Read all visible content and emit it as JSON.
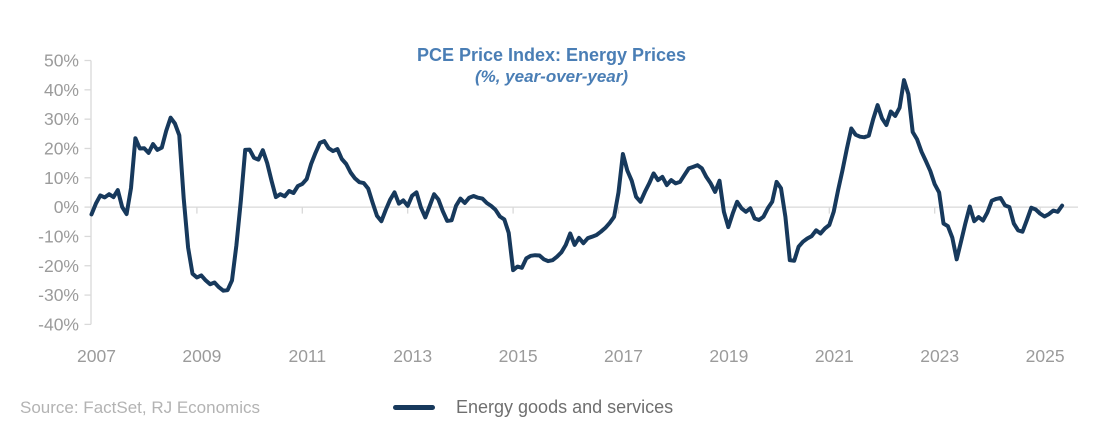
{
  "header": {
    "title": "PCE Price Index: Energy Prices",
    "subtitle": "(%, year-over-year)",
    "title_color": "#4A7EB5"
  },
  "legend": {
    "label": "Energy goods and services",
    "swatch_color": "#17395C"
  },
  "source_note": "Source: FactSet, RJ Economics",
  "chart_data": {
    "type": "line",
    "title": "PCE Price Index: Energy Prices",
    "subtitle": "(%, year-over-year)",
    "unit": "percent, year-over-year",
    "frequency": "monthly",
    "x_start": {
      "year": 2007,
      "month": 1
    },
    "x_end": {
      "year": 2025,
      "month": 6
    },
    "x_tick_labels": [
      "2007",
      "2009",
      "2011",
      "2013",
      "2015",
      "2017",
      "2019",
      "2021",
      "2023",
      "2025"
    ],
    "y_tick_labels": [
      "50%",
      "40%",
      "30%",
      "20%",
      "10%",
      "0%",
      "-10%",
      "-20%",
      "-30%",
      "-40%"
    ],
    "ylim": [
      -40,
      50
    ],
    "y_tick_step": 10,
    "grid": "zero-line-only",
    "legend_position": "bottom-center",
    "axis_color": "#d9d9d9",
    "tick_label_color": "#9b9b9b",
    "series": [
      {
        "name": "Energy goods and services",
        "color": "#17395C",
        "values": [
          -2.5,
          1.2,
          4.0,
          3.3,
          4.4,
          3.4,
          5.8,
          0.0,
          -2.4,
          6.5,
          23.5,
          20.0,
          20.1,
          18.5,
          21.5,
          19.5,
          20.3,
          26.0,
          30.5,
          28.5,
          24.5,
          3.0,
          -13.8,
          -22.7,
          -24.0,
          -23.3,
          -25.0,
          -26.3,
          -25.7,
          -27.3,
          -28.5,
          -28.3,
          -25.0,
          -13.0,
          2.0,
          19.5,
          19.6,
          16.8,
          16.2,
          19.4,
          15.0,
          8.9,
          3.4,
          4.4,
          3.7,
          5.5,
          4.8,
          7.2,
          7.9,
          9.6,
          14.7,
          18.5,
          21.9,
          22.5,
          20.1,
          19.1,
          19.8,
          16.4,
          14.7,
          11.8,
          9.8,
          8.5,
          8.2,
          6.3,
          1.5,
          -3.0,
          -4.8,
          -1.0,
          2.5,
          5.0,
          1.2,
          2.3,
          0.4,
          3.9,
          5.0,
          -0.1,
          -3.5,
          0.4,
          4.4,
          2.6,
          -1.4,
          -4.7,
          -4.5,
          0.4,
          2.9,
          1.4,
          3.2,
          3.8,
          3.2,
          2.9,
          1.4,
          0.4,
          -0.9,
          -3.2,
          -4.2,
          -8.8,
          -21.5,
          -20.3,
          -20.7,
          -17.5,
          -16.6,
          -16.4,
          -16.5,
          -17.8,
          -18.4,
          -18.1,
          -16.9,
          -15.4,
          -12.9,
          -9.0,
          -12.9,
          -10.5,
          -12.3,
          -10.6,
          -10.1,
          -9.5,
          -8.4,
          -7.1,
          -5.4,
          -3.3,
          5.0,
          18.1,
          12.5,
          9.0,
          3.5,
          1.8,
          5.2,
          8.1,
          11.5,
          9.2,
          10.3,
          7.5,
          9.2,
          8.1,
          8.6,
          10.9,
          13.2,
          13.7,
          14.3,
          13.2,
          10.3,
          8.1,
          5.2,
          9.0,
          -1.6,
          -6.8,
          -2.2,
          1.8,
          -0.4,
          -1.6,
          -0.4,
          -3.9,
          -4.4,
          -3.3,
          -0.4,
          1.8,
          8.6,
          6.4,
          -3.3,
          -18.1,
          -18.3,
          -13.5,
          -11.8,
          -10.7,
          -9.9,
          -7.9,
          -9.0,
          -7.3,
          -6.1,
          -1.6,
          5.8,
          12.6,
          20.0,
          26.8,
          24.7,
          24.0,
          23.8,
          24.4,
          30.0,
          34.8,
          30.3,
          28.0,
          32.6,
          31.1,
          33.9,
          43.3,
          38.5,
          25.6,
          23.1,
          18.9,
          15.7,
          12.3,
          7.8,
          5.0,
          -5.6,
          -6.5,
          -10.4,
          -17.8,
          -11.8,
          -5.5,
          0.2,
          -4.8,
          -3.4,
          -4.6,
          -1.8,
          2.2,
          2.8,
          3.1,
          0.6,
          0.0,
          -5.6,
          -7.9,
          -8.4,
          -4.4,
          -0.2,
          -0.8,
          -2.2,
          -3.2,
          -2.4,
          -1.2,
          -1.6,
          0.5
        ]
      }
    ]
  }
}
